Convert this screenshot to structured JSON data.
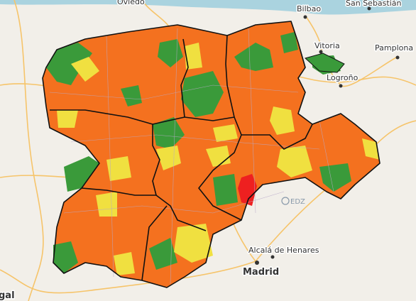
{
  "places": [
    {
      "label": "Oviedo"
    },
    {
      "label": "Bilbao"
    },
    {
      "label": "San Sebastián"
    },
    {
      "label": "Vitoria"
    },
    {
      "label": "Pamplona"
    },
    {
      "label": "Logroño"
    },
    {
      "label": "Alcalá de Henares"
    },
    {
      "label": "Madrid"
    },
    {
      "label": "gal"
    }
  ],
  "attribution": "EDZ"
}
